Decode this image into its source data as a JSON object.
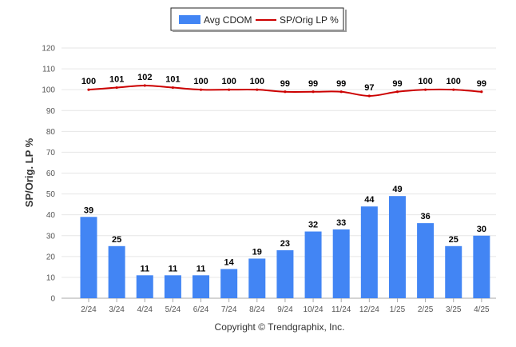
{
  "chart_data": {
    "type": "bar",
    "categories": [
      "2/24",
      "3/24",
      "4/24",
      "5/24",
      "6/24",
      "7/24",
      "8/24",
      "9/24",
      "10/24",
      "11/24",
      "12/24",
      "1/25",
      "2/25",
      "3/25",
      "4/25"
    ],
    "series": [
      {
        "name": "Avg CDOM",
        "type": "bar",
        "color": "#4285F4",
        "values": [
          39,
          25,
          11,
          11,
          11,
          14,
          19,
          23,
          32,
          33,
          44,
          49,
          36,
          25,
          30
        ]
      },
      {
        "name": "SP/Orig LP %",
        "type": "line",
        "color": "#CC0000",
        "values": [
          100,
          101,
          102,
          101,
          100,
          100,
          100,
          99,
          99,
          99,
          97,
          99,
          100,
          100,
          99
        ]
      }
    ],
    "ylabel": "SP/Orig. LP %",
    "xlabel": "",
    "ylim": [
      0,
      120
    ],
    "yticks": [
      0,
      10,
      20,
      30,
      40,
      50,
      60,
      70,
      80,
      90,
      100,
      110,
      120
    ],
    "grid": true,
    "legend": "top-center"
  },
  "footer": "Copyright © Trendgraphix, Inc."
}
